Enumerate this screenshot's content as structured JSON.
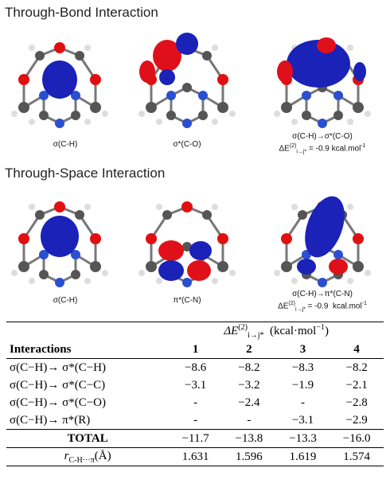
{
  "through_bond": {
    "title": "Through-Bond Interaction",
    "panels": [
      {
        "caption": "σ(C-H)"
      },
      {
        "caption": "σ*(C-O)"
      },
      {
        "caption": "σ(C-H)→σ*(C-O)",
        "energy": {
          "symbol": "ΔE",
          "sup": "(2)",
          "sub": "i→j*",
          "text": " = -0.9 kcal.mol",
          "unit_sup": "-1"
        }
      }
    ]
  },
  "through_space": {
    "title": "Through-Space Interaction",
    "panels": [
      {
        "caption": "σ(C-H)"
      },
      {
        "caption": "π*(C-N)"
      },
      {
        "caption": "σ(C-H)→π*(C-N)",
        "energy": {
          "symbol": "ΔE",
          "sup": "(2)",
          "sub": "i→j*",
          "text": " = -0.9  kcal.mol",
          "unit_sup": "-1"
        }
      }
    ]
  },
  "table": {
    "group_header": {
      "symbol": "ΔE",
      "sup": "(2)",
      "sub": "i→j*",
      "text": "(kcal·mol",
      "unit_sup": "−1",
      "close": ")"
    },
    "columns": [
      "Interactions",
      "1",
      "2",
      "3",
      "4"
    ],
    "rows": [
      [
        "σ(C−H)→ σ*(C−H)",
        "−8.6",
        "−8.2",
        "−8.3",
        "−8.2"
      ],
      [
        "σ(C−H)→ σ*(C−C)",
        "−3.1",
        "−3.2",
        "−1.9",
        "−2.1"
      ],
      [
        "σ(C−H)→ σ*(C−O)",
        "-",
        "−2.4",
        "-",
        "−2.8"
      ],
      [
        "σ(C−H)→ π*(R)",
        "-",
        "-",
        "−3.1",
        "−2.9"
      ]
    ],
    "total": [
      "TOTAL",
      "−11.7",
      "−13.8",
      "−13.3",
      "−16.0"
    ],
    "distance": {
      "symbol": "r",
      "sub": "C-H···π",
      "unit": "(Å)",
      "values": [
        "1.631",
        "1.596",
        "1.619",
        "1.574"
      ]
    }
  }
}
